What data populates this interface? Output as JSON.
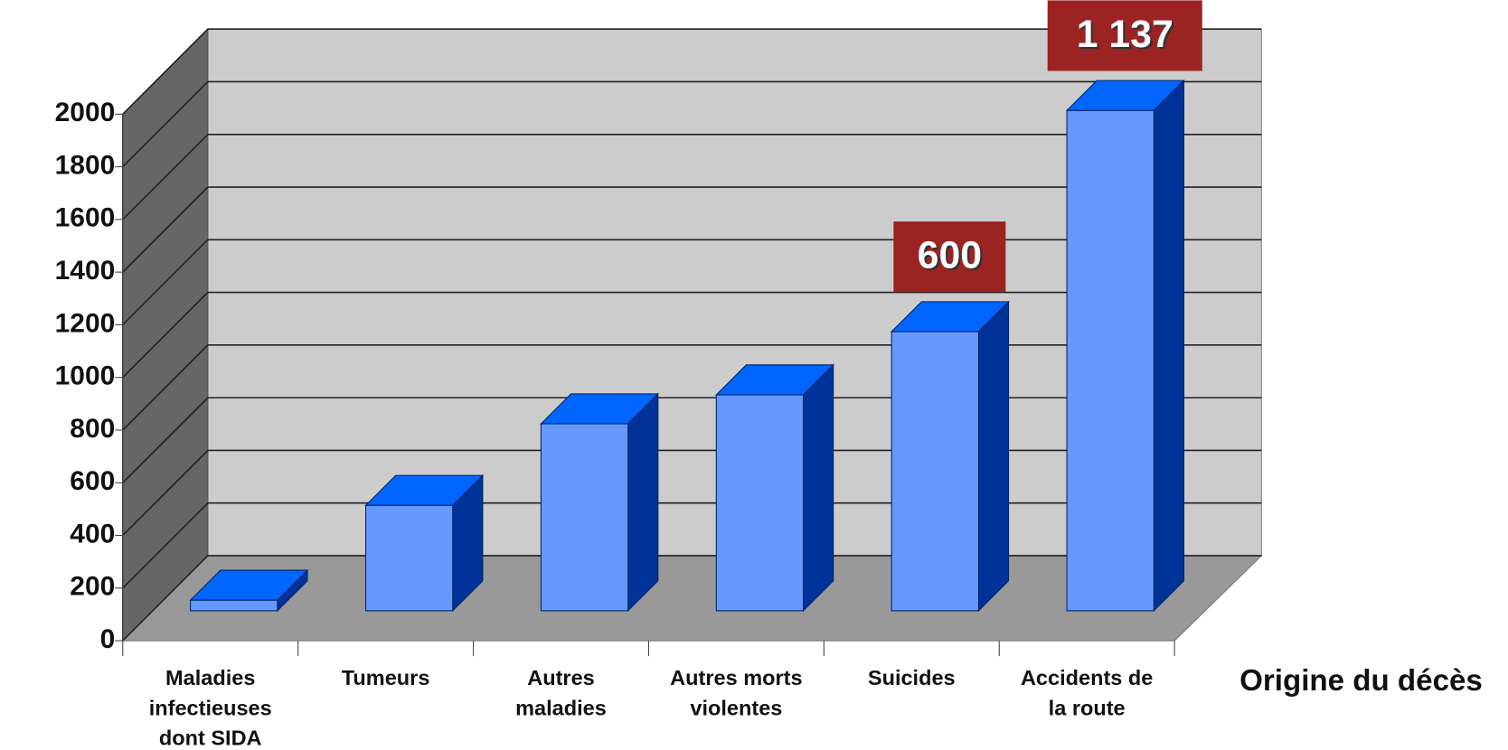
{
  "chart_data": {
    "type": "bar3d",
    "categories": [
      "Maladies infectieuses dont SIDA",
      "Tumeurs",
      "Autres maladies",
      "Autres morts violentes",
      "Suicides",
      "Accidents de la route"
    ],
    "values": [
      40,
      400,
      710,
      820,
      1060,
      1900
    ],
    "colors": {
      "front": "#6699ff",
      "top": "#0066ff",
      "side": "#003399"
    },
    "xlabel": "Origine du décès",
    "annotations": [
      "600",
      "1 137"
    ],
    "ylim": [
      0,
      2000
    ],
    "yticks": [
      0,
      200,
      400,
      600,
      800,
      1000,
      1200,
      1400,
      1600,
      1800,
      2000
    ],
    "grid": true
  }
}
